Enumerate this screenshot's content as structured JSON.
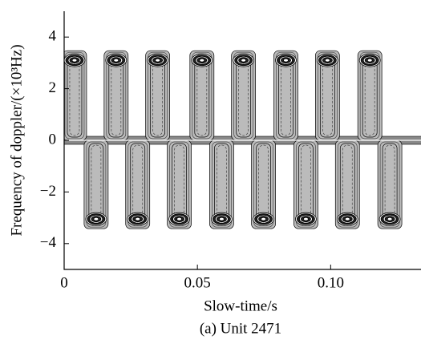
{
  "chart_data": {
    "type": "contour",
    "caption": "(a) Unit 2471",
    "x_label": "Slow-time/s",
    "y_label": "Frequency of doppler/(×10³Hz)",
    "x": [
      0.0039,
      0.012,
      0.0195,
      0.0276,
      0.0351,
      0.0432,
      0.0517,
      0.0591,
      0.0673,
      0.0748,
      0.0832,
      0.0907,
      0.0988,
      0.1063,
      0.1147,
      0.1222
    ],
    "values": [
      3.1,
      -3.05,
      3.1,
      -3.05,
      3.1,
      -3.05,
      3.1,
      -3.05,
      3.1,
      -3.05,
      3.1,
      -3.05,
      3.1,
      -3.05,
      3.1,
      -3.05
    ],
    "color": "#000000",
    "xlim": [
      0,
      0.133
    ],
    "ylim": [
      -5,
      5
    ],
    "xticks": [
      0,
      0.05,
      {
        "value": 0.1,
        "label": "0.10"
      }
    ],
    "yticks": [
      {
        "value": -4,
        "label": "−4"
      },
      {
        "value": -2,
        "label": "−2"
      },
      0,
      2,
      4
    ]
  }
}
